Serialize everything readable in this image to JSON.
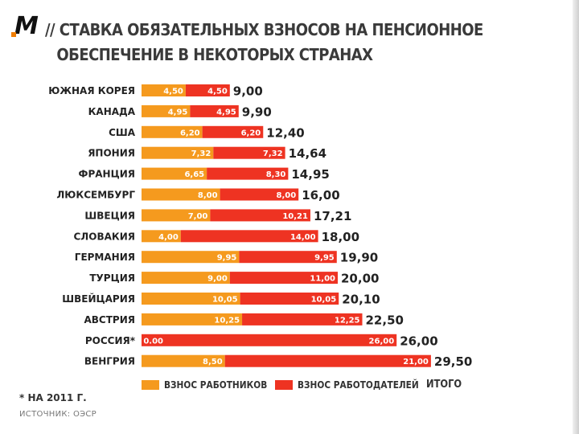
{
  "header": {
    "logo": "M",
    "title_line1": "// СТАВКА ОБЯЗАТЕЛЬНЫХ ВЗНОСОВ НА ПЕНСИОННОЕ",
    "title_line2": "ОБЕСПЕЧЕНИЕ В НЕКОТОРЫХ СТРАНАХ"
  },
  "colors": {
    "employees": "#f59a1e",
    "employers": "#ee3322",
    "text": "#222222"
  },
  "chart_data": {
    "type": "bar",
    "stacked": true,
    "orientation": "horizontal",
    "title": "Ставка обязательных взносов на пенсионное обеспечение в некоторых странах",
    "categories": [
      "ЮЖНАЯ КОРЕЯ",
      "КАНАДА",
      "США",
      "ЯПОНИЯ",
      "ФРАНЦИЯ",
      "ЛЮКСЕМБУРГ",
      "ШВЕЦИЯ",
      "СЛОВАКИЯ",
      "ГЕРМАНИЯ",
      "ТУРЦИЯ",
      "ШВЕЙЦАРИЯ",
      "АВСТРИЯ",
      "РОССИЯ*",
      "ВЕНГРИЯ"
    ],
    "series": [
      {
        "name": "ВЗНОС РАБОТНИКОВ",
        "values": [
          4.5,
          4.95,
          6.2,
          7.32,
          6.65,
          8.0,
          7.0,
          4.0,
          9.95,
          9.0,
          10.05,
          10.25,
          0.0,
          8.5
        ],
        "labels": [
          "4,50",
          "4,95",
          "6,20",
          "7,32",
          "6,65",
          "8,00",
          "7,00",
          "4,00",
          "9,95",
          "9,00",
          "10,05",
          "10,25",
          "0.00",
          "8,50"
        ]
      },
      {
        "name": "ВЗНОС РАБОТОДАТЕЛЕЙ",
        "values": [
          4.5,
          4.95,
          6.2,
          7.32,
          8.3,
          8.0,
          10.21,
          14.0,
          9.95,
          11.0,
          10.05,
          12.25,
          26.0,
          21.0
        ],
        "labels": [
          "4,50",
          "4,95",
          "6,20",
          "7,32",
          "8,30",
          "8,00",
          "10,21",
          "14,00",
          "9,95",
          "11,00",
          "10,05",
          "12,25",
          "26,00",
          "21,00"
        ]
      }
    ],
    "totals_name": "ИТОГО",
    "totals": [
      9.0,
      9.9,
      12.4,
      14.64,
      14.95,
      16.0,
      17.21,
      18.0,
      19.9,
      20.0,
      20.1,
      22.5,
      26.0,
      29.5
    ],
    "total_labels": [
      "9,00",
      "9,90",
      "12,40",
      "14,64",
      "14,95",
      "16,00",
      "17,21",
      "18,00",
      "19,90",
      "20,00",
      "20,10",
      "22,50",
      "26,00",
      "29,50"
    ],
    "xlim": [
      0,
      30
    ]
  },
  "footer": {
    "note": "* НА 2011 Г.",
    "source": "ИСТОЧНИК: ОЭСР"
  }
}
